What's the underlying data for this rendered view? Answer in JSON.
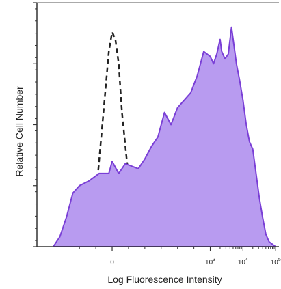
{
  "chart_data": {
    "type": "area",
    "xlabel": "Log Fluorescence Intensity",
    "ylabel": "Relative Cell Number",
    "x_scale": "biexponential",
    "xlim": [
      -2.3,
      5.1
    ],
    "ylim": [
      0,
      1.0
    ],
    "x_ticks": [
      {
        "value": 0,
        "base": "0",
        "exp": ""
      },
      {
        "value": 3,
        "base": "10",
        "exp": "3"
      },
      {
        "value": 4,
        "base": "10",
        "exp": "4"
      },
      {
        "value": 5,
        "base": "10",
        "exp": "5"
      }
    ],
    "grid": false,
    "legend": "none",
    "series": [
      {
        "style": "dashed-outline",
        "color": "#222222",
        "x": [
          -1.0,
          -0.75,
          -0.5,
          -0.3,
          -0.1,
          0.0,
          0.1,
          0.2,
          0.3,
          0.45,
          0.6,
          0.8,
          1.0,
          1.2
        ],
        "y": [
          0.0,
          0.02,
          0.2,
          0.5,
          0.8,
          0.88,
          0.85,
          0.75,
          0.55,
          0.35,
          0.2,
          0.08,
          0.02,
          0.0
        ]
      },
      {
        "style": "filled",
        "color": "#7a3fd6",
        "fill": "#b89bf0",
        "x": [
          -1.8,
          -1.6,
          -1.4,
          -1.2,
          -1.0,
          -0.7,
          -0.4,
          -0.1,
          0.0,
          0.2,
          0.4,
          0.6,
          0.8,
          1.0,
          1.2,
          1.4,
          1.6,
          1.8,
          2.0,
          2.2,
          2.4,
          2.6,
          2.8,
          3.0,
          3.1,
          3.2,
          3.3,
          3.35,
          3.45,
          3.55,
          3.65,
          3.75,
          3.8,
          3.9,
          4.0,
          4.1,
          4.2,
          4.3,
          4.4,
          4.5,
          4.6,
          4.7,
          4.8,
          4.9,
          5.0
        ],
        "y": [
          0.0,
          0.04,
          0.12,
          0.22,
          0.25,
          0.27,
          0.3,
          0.3,
          0.35,
          0.3,
          0.34,
          0.33,
          0.32,
          0.36,
          0.41,
          0.45,
          0.55,
          0.5,
          0.57,
          0.6,
          0.63,
          0.7,
          0.8,
          0.78,
          0.75,
          0.79,
          0.85,
          0.8,
          0.77,
          0.79,
          0.9,
          0.8,
          0.75,
          0.68,
          0.6,
          0.5,
          0.43,
          0.4,
          0.3,
          0.2,
          0.12,
          0.05,
          0.02,
          0.01,
          0.0
        ]
      }
    ]
  }
}
